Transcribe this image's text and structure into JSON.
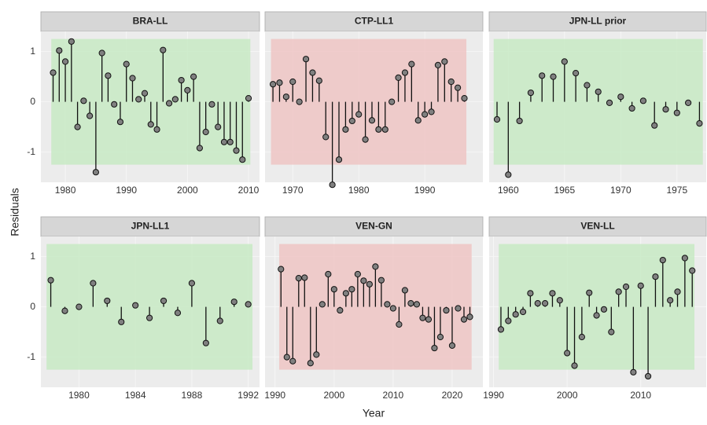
{
  "axis_labels": {
    "x": "Year",
    "y": "Residuals"
  },
  "chart_data": [
    {
      "type": "stem",
      "title": "BRA-LL",
      "shade": {
        "ylim": [
          -1.25,
          1.25
        ],
        "color": "#c8eac4"
      },
      "x": [
        1978,
        1979,
        1980,
        1981,
        1982,
        1983,
        1984,
        1985,
        1986,
        1987,
        1988,
        1989,
        1990,
        1991,
        1992,
        1993,
        1994,
        1995,
        1996,
        1997,
        1998,
        1999,
        2000,
        2001,
        2002,
        2003,
        2004,
        2005,
        2006,
        2007,
        2008,
        2009,
        2010
      ],
      "values": [
        0.58,
        1.02,
        0.8,
        1.2,
        -0.5,
        0.02,
        -0.28,
        -1.4,
        0.97,
        0.52,
        -0.05,
        -0.4,
        0.75,
        0.47,
        0.05,
        0.17,
        -0.45,
        -0.55,
        1.03,
        -0.03,
        0.05,
        0.43,
        0.23,
        0.5,
        -0.92,
        -0.6,
        -0.05,
        -0.5,
        -0.8,
        -0.8,
        -0.97,
        -1.15,
        0.07
      ],
      "xlim": [
        1976,
        2011.8
      ],
      "xticks": [
        1980,
        1990,
        2000,
        2010
      ],
      "ylim": [
        -1.6,
        1.4
      ],
      "yticks": [
        -1,
        0,
        1
      ],
      "color": "#808080"
    },
    {
      "type": "stem",
      "title": "CTP-LL1",
      "shade": {
        "ylim": [
          -1.25,
          1.25
        ],
        "color": "#eec6c4"
      },
      "x": [
        1967,
        1968,
        1969,
        1970,
        1971,
        1972,
        1973,
        1974,
        1975,
        1976,
        1977,
        1978,
        1979,
        1980,
        1981,
        1982,
        1983,
        1984,
        1985,
        1986,
        1987,
        1988,
        1989,
        1990,
        1991,
        1992,
        1993,
        1994,
        1995,
        1996
      ],
      "values": [
        0.35,
        0.38,
        0.1,
        0.4,
        0,
        0.85,
        0.58,
        0.42,
        -0.7,
        -1.65,
        -1.15,
        -0.55,
        -0.38,
        -0.25,
        -0.75,
        -0.37,
        -0.55,
        -0.55,
        0,
        0.48,
        0.58,
        0.75,
        -0.37,
        -0.25,
        -0.2,
        0.73,
        0.8,
        0.4,
        0.28,
        0.07
      ],
      "xlim": [
        1965.8,
        1998.8
      ],
      "xticks": [
        1970,
        1980,
        1990
      ],
      "ylim": [
        -1.6,
        1.4
      ],
      "yticks": [
        -1,
        0,
        1
      ],
      "color": "#808080"
    },
    {
      "type": "stem",
      "title": "JPN-LL prior",
      "shade": {
        "ylim": [
          -1.25,
          1.25
        ],
        "color": "#c8eac4"
      },
      "x": [
        1959,
        1960,
        1961,
        1962,
        1963,
        1964,
        1965,
        1966,
        1967,
        1968,
        1969,
        1970,
        1971,
        1972,
        1973,
        1974,
        1975,
        1976,
        1977
      ],
      "values": [
        -0.35,
        -1.45,
        -0.38,
        0.18,
        0.52,
        0.5,
        0.8,
        0.57,
        0.33,
        0.2,
        -0.02,
        0.1,
        -0.13,
        0.02,
        -0.47,
        -0.15,
        -0.22,
        -0.02,
        -0.43
      ],
      "xlim": [
        1958.3,
        1977.6
      ],
      "xticks": [
        1960,
        1965,
        1970,
        1975
      ],
      "ylim": [
        -1.6,
        1.4
      ],
      "yticks": [
        -1,
        0,
        1
      ],
      "color": "#808080"
    },
    {
      "type": "stem",
      "title": "JPN-LL1",
      "shade": {
        "ylim": [
          -1.25,
          1.25
        ],
        "color": "#c8eac4"
      },
      "x": [
        1978,
        1979,
        1980,
        1981,
        1982,
        1983,
        1984,
        1985,
        1986,
        1987,
        1988,
        1989,
        1990,
        1991,
        1992
      ],
      "values": [
        0.53,
        -0.08,
        0,
        0.47,
        0.12,
        -0.3,
        0.03,
        -0.22,
        0.12,
        -0.12,
        0.47,
        -0.72,
        -0.28,
        0.1,
        0.05
      ],
      "xlim": [
        1977.3,
        1992.8
      ],
      "xticks": [
        1980,
        1984,
        1988,
        1992
      ],
      "ylim": [
        -1.6,
        1.4
      ],
      "yticks": [
        -1,
        0,
        1
      ],
      "color": "#808080"
    },
    {
      "type": "stem",
      "title": "VEN-GN",
      "shade": {
        "ylim": [
          -1.25,
          1.25
        ],
        "color": "#eec6c4"
      },
      "x": [
        1991,
        1992,
        1993,
        1994,
        1995,
        1996,
        1997,
        1998,
        1999,
        2000,
        2001,
        2002,
        2003,
        2004,
        2005,
        2006,
        2007,
        2008,
        2009,
        2010,
        2011,
        2012,
        2013,
        2014,
        2015,
        2016,
        2017,
        2018,
        2019,
        2020,
        2021,
        2022,
        2023
      ],
      "values": [
        0.75,
        -1.0,
        -1.08,
        0.57,
        0.58,
        -1.12,
        -0.95,
        0.05,
        0.65,
        0.35,
        -0.07,
        0.27,
        0.35,
        0.65,
        0.52,
        0.45,
        0.8,
        0.53,
        0.05,
        -0.03,
        -0.35,
        0.33,
        0.07,
        0.05,
        -0.22,
        -0.25,
        -0.82,
        -0.6,
        -0.07,
        -0.77,
        -0.03,
        -0.25,
        -0.2
      ],
      "xlim": [
        1988.3,
        2025.2
      ],
      "xticks": [
        1990,
        2000,
        2010,
        2020
      ],
      "ylim": [
        -1.6,
        1.4
      ],
      "yticks": [
        -1,
        0,
        1
      ],
      "color": "#808080"
    },
    {
      "type": "stem",
      "title": "VEN-LL",
      "shade": {
        "ylim": [
          -1.25,
          1.25
        ],
        "color": "#c8eac4"
      },
      "x": [
        1991,
        1992,
        1993,
        1994,
        1995,
        1996,
        1997,
        1998,
        1999,
        2000,
        2001,
        2002,
        2003,
        2004,
        2005,
        2006,
        2007,
        2008,
        2009,
        2010,
        2011,
        2012,
        2013,
        2014,
        2015,
        2016,
        2017
      ],
      "values": [
        -0.45,
        -0.28,
        -0.15,
        -0.1,
        0.27,
        0.07,
        0.07,
        0.27,
        0.13,
        -0.92,
        -1.17,
        -0.6,
        0.28,
        -0.17,
        -0.05,
        -0.5,
        0.3,
        0.4,
        -1.3,
        0.42,
        -1.38,
        0.6,
        0.93,
        0.13,
        0.3,
        0.97,
        0.72
      ],
      "xlim": [
        1989.4,
        2018.9
      ],
      "xticks": [
        1990,
        2000,
        2010
      ],
      "ylim": [
        -1.6,
        1.4
      ],
      "yticks": [
        -1,
        0,
        1
      ],
      "color": "#808080"
    }
  ]
}
